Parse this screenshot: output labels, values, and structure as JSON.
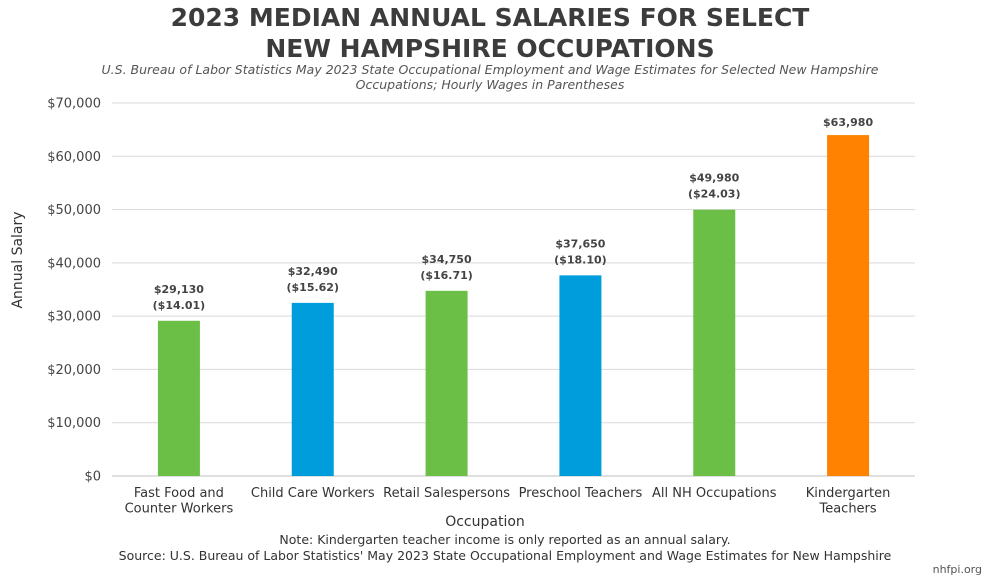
{
  "chart_data": {
    "type": "bar",
    "title": [
      "2023 MEDIAN ANNUAL SALARIES FOR SELECT",
      "NEW HAMPSHIRE OCCUPATIONS"
    ],
    "subtitle": [
      "U.S. Bureau of Labor Statistics May 2023 State Occupational Employment and Wage Estimates for Selected New Hampshire",
      "Occupations; Hourly Wages in Parentheses"
    ],
    "xlabel": "Occupation",
    "ylabel": "Annual Salary",
    "ylim": [
      0,
      70000
    ],
    "yticks": [
      "$0",
      "$10,000",
      "$20,000",
      "$30,000",
      "$40,000",
      "$50,000",
      "$60,000",
      "$70,000"
    ],
    "grid": true,
    "categories": [
      [
        "Fast Food and",
        "Counter Workers"
      ],
      [
        "Child Care Workers"
      ],
      [
        "Retail Salespersons"
      ],
      [
        "Preschool Teachers"
      ],
      [
        "All NH Occupations"
      ],
      [
        "Kindergarten",
        "Teachers"
      ]
    ],
    "values": [
      29130,
      32490,
      34750,
      37650,
      49980,
      63980
    ],
    "value_labels": [
      "$29,130",
      "$32,490",
      "$34,750",
      "$37,650",
      "$49,980",
      "$63,980"
    ],
    "hourly_labels": [
      "($14.01)",
      "($15.62)",
      "($16.71)",
      "($18.10)",
      "($24.03)",
      ""
    ],
    "bar_colors": [
      "#6cbf46",
      "#009ddc",
      "#6cbf46",
      "#009ddc",
      "#6cbf46",
      "#ff8200"
    ]
  },
  "notes": [
    "Note: Kindergarten teacher income is only reported as an annual salary.",
    "Source: U.S. Bureau of Labor Statistics' May 2023 State Occupational Employment and Wage Estimates for New Hampshire"
  ],
  "brand": "nhfpi.org"
}
